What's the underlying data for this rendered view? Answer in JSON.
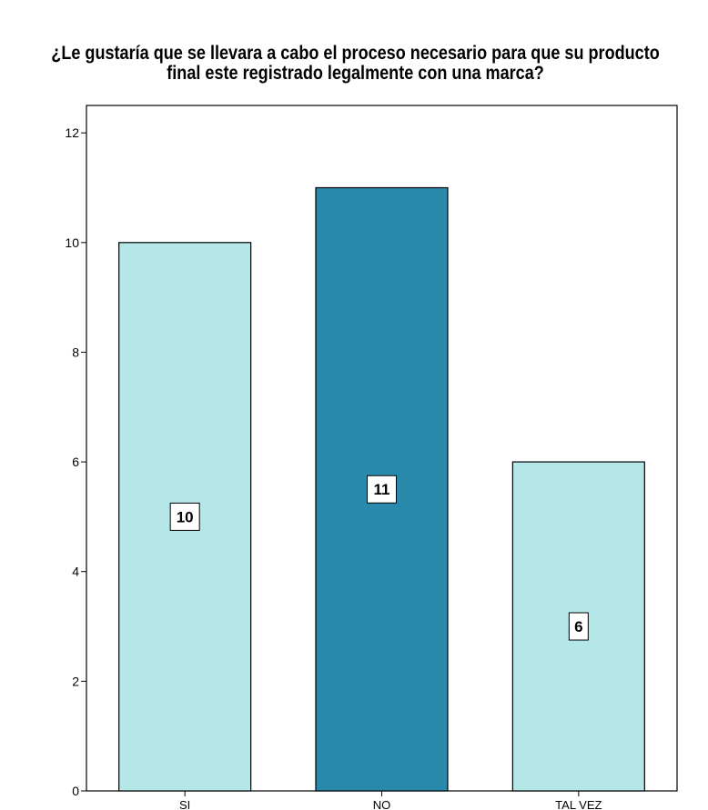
{
  "chart_data": {
    "type": "bar",
    "title_lines": [
      "¿Le gustaría que se llevara a cabo el proceso necesario para que su producto",
      "final este registrado legalmente con una marca?"
    ],
    "categories": [
      "SI",
      "NO",
      "TAL VEZ"
    ],
    "values": [
      10,
      11,
      6
    ],
    "data_labels": [
      "10",
      "11",
      "6"
    ],
    "ylim": [
      0,
      12.5
    ],
    "yticks": [
      0,
      2,
      4,
      6,
      8,
      10,
      12
    ],
    "xlabel": "",
    "ylabel": "",
    "grid": false,
    "legend": "none",
    "bar_colors": [
      "#b5e6e8",
      "#2a8aab",
      "#b5e6e8"
    ]
  }
}
